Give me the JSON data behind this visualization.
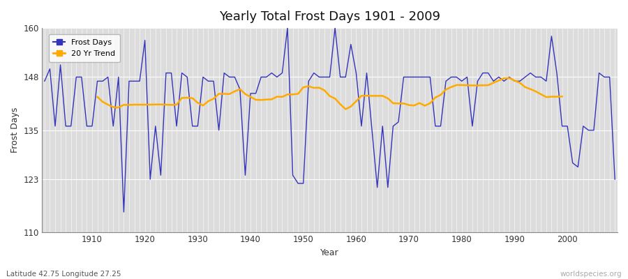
{
  "title": "Yearly Total Frost Days 1901 - 2009",
  "xlabel": "Year",
  "ylabel": "Frost Days",
  "lat_lon_label": "Latitude 42.75 Longitude 27.25",
  "watermark": "worldspecies.org",
  "ylim": [
    110,
    160
  ],
  "yticks": [
    110,
    123,
    135,
    148,
    160
  ],
  "line_color": "#3333bb",
  "trend_color": "#ffaa00",
  "bg_plot": "#dcdcdc",
  "bg_figure": "#ffffff",
  "years": [
    1901,
    1902,
    1903,
    1904,
    1905,
    1906,
    1907,
    1908,
    1909,
    1910,
    1911,
    1912,
    1913,
    1914,
    1915,
    1916,
    1917,
    1918,
    1919,
    1920,
    1921,
    1922,
    1923,
    1924,
    1925,
    1926,
    1927,
    1928,
    1929,
    1930,
    1931,
    1932,
    1933,
    1934,
    1935,
    1936,
    1937,
    1938,
    1939,
    1940,
    1941,
    1942,
    1943,
    1944,
    1945,
    1946,
    1947,
    1948,
    1949,
    1950,
    1951,
    1952,
    1953,
    1954,
    1955,
    1956,
    1957,
    1958,
    1959,
    1960,
    1961,
    1962,
    1963,
    1964,
    1965,
    1966,
    1967,
    1968,
    1969,
    1970,
    1971,
    1972,
    1973,
    1974,
    1975,
    1976,
    1977,
    1978,
    1979,
    1980,
    1981,
    1982,
    1983,
    1984,
    1985,
    1986,
    1987,
    1988,
    1989,
    1990,
    1991,
    1992,
    1993,
    1994,
    1995,
    1996,
    1997,
    1998,
    1999,
    2000,
    2001,
    2002,
    2003,
    2004,
    2005,
    2006,
    2007,
    2008,
    2009
  ],
  "frost_days": [
    147,
    150,
    136,
    151,
    136,
    136,
    148,
    148,
    136,
    136,
    147,
    147,
    148,
    136,
    148,
    115,
    147,
    147,
    147,
    157,
    123,
    136,
    124,
    149,
    149,
    136,
    149,
    148,
    136,
    136,
    148,
    147,
    147,
    135,
    149,
    148,
    148,
    145,
    124,
    144,
    144,
    148,
    148,
    149,
    148,
    149,
    160,
    124,
    122,
    122,
    147,
    149,
    148,
    148,
    148,
    160,
    148,
    148,
    156,
    149,
    136,
    149,
    135,
    121,
    136,
    121,
    136,
    137,
    148,
    148,
    148,
    148,
    148,
    148,
    136,
    136,
    147,
    148,
    148,
    147,
    148,
    136,
    147,
    149,
    149,
    147,
    148,
    147,
    148,
    147,
    147,
    148,
    149,
    148,
    148,
    147,
    158,
    149,
    136,
    136,
    127,
    126,
    136,
    135,
    135,
    149,
    148,
    148,
    123
  ]
}
